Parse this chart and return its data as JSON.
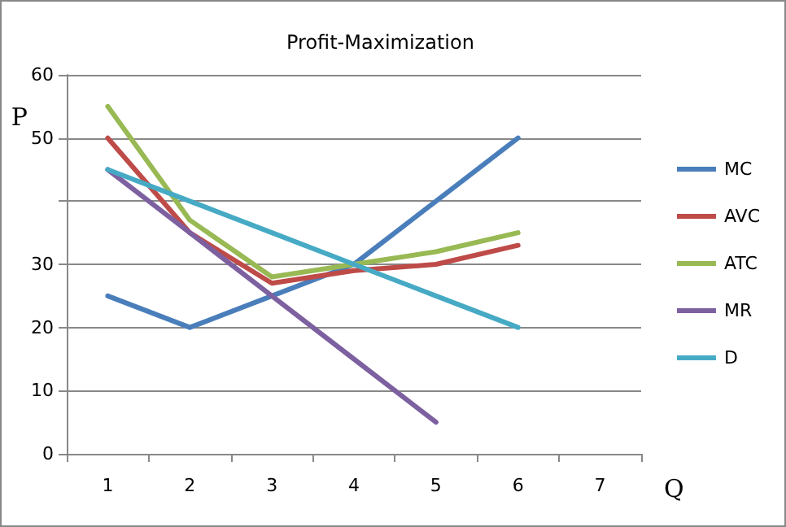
{
  "chart_data": {
    "type": "line",
    "title": "Profit-Maximization",
    "xlabel": "Q",
    "ylabel": "P",
    "categories": [
      "1",
      "2",
      "3",
      "4",
      "5",
      "6",
      "7"
    ],
    "series": [
      {
        "name": "MC",
        "color": "#4a7ebb",
        "values": [
          25,
          20,
          25,
          30,
          40,
          50,
          null
        ]
      },
      {
        "name": "AVC",
        "color": "#be4b48",
        "values": [
          50,
          35,
          27,
          29,
          30,
          33,
          null
        ]
      },
      {
        "name": "ATC",
        "color": "#98b954",
        "values": [
          55,
          37,
          28,
          30,
          32,
          35,
          null
        ]
      },
      {
        "name": "MR",
        "color": "#7d60a0",
        "values": [
          45,
          35,
          25,
          15,
          5,
          null,
          null
        ]
      },
      {
        "name": "D",
        "color": "#46aac5",
        "values": [
          45,
          40,
          35,
          30,
          25,
          20,
          null
        ]
      }
    ],
    "ylim": [
      0,
      60
    ],
    "yticks": [
      0,
      10,
      20,
      30,
      {
        "value": 40,
        "label": null
      },
      50,
      60
    ],
    "grid": "y",
    "legend": "right",
    "marker": "none",
    "line_style": "solid"
  }
}
